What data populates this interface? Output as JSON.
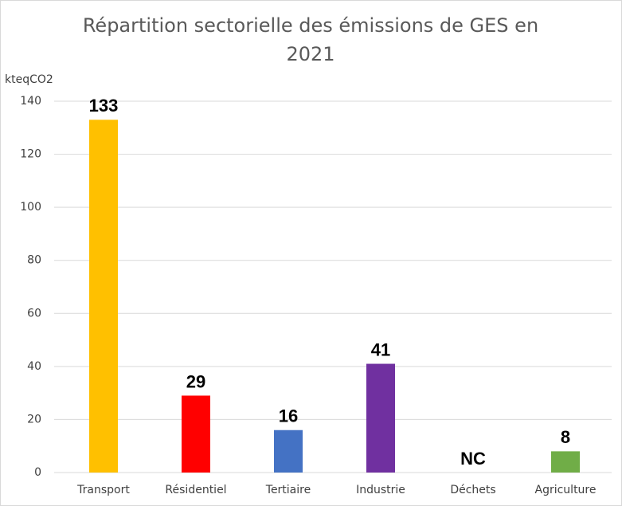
{
  "chart_data": {
    "type": "bar",
    "title": "Répartition sectorielle des émissions de GES en 2021",
    "y_axis_label": "kteqCO2",
    "categories": [
      "Transport",
      "Résidentiel",
      "Tertiaire",
      "Industrie",
      "Déchets",
      "Agriculture"
    ],
    "values": [
      133,
      29,
      16,
      41,
      null,
      8
    ],
    "value_labels": [
      "133",
      "29",
      "16",
      "41",
      "NC",
      "8"
    ],
    "colors": [
      "#ffc000",
      "#ff0000",
      "#4472c4",
      "#7030a0",
      null,
      "#70ad47"
    ],
    "ylim": [
      0,
      140
    ],
    "yticks": [
      0,
      20,
      40,
      60,
      80,
      100,
      120,
      140
    ],
    "grid": true
  }
}
